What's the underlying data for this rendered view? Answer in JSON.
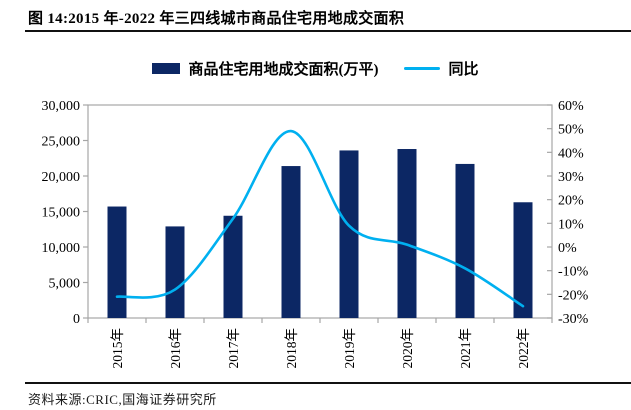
{
  "header": {
    "title": "图 14:2015 年-2022 年三四线城市商品住宅用地成交面积"
  },
  "legend": [
    {
      "label": "商品住宅用地成交面积(万平)",
      "swatch": "bar-swatch",
      "color": "#0C2764"
    },
    {
      "label": "同比",
      "swatch": "line-swatch",
      "color": "#00B0F0"
    }
  ],
  "footer": {
    "source": "资料来源:CRIC,国海证券研究所"
  },
  "chart_data": {
    "type": "bar",
    "subtype": "combo-bar-line-dual-axis",
    "title": "2015 年-2022 年三四线城市商品住宅用地成交面积",
    "categories": [
      "2015年",
      "2016年",
      "2017年",
      "2018年",
      "2019年",
      "2020年",
      "2021年",
      "2022年"
    ],
    "series": [
      {
        "name": "商品住宅用地成交面积(万平)",
        "type": "bar",
        "axis": "left",
        "color": "#0C2764",
        "values": [
          15700,
          12900,
          14400,
          21400,
          23600,
          23800,
          21700,
          16300
        ]
      },
      {
        "name": "同比",
        "type": "line",
        "axis": "right",
        "color": "#00B0F0",
        "values": [
          -21,
          -18,
          12,
          49,
          9,
          1,
          -9,
          -25
        ],
        "unit": "%"
      }
    ],
    "left_axis": {
      "min": 0,
      "max": 30000,
      "step": 5000,
      "tick_labels": [
        "0",
        "5,000",
        "10,000",
        "15,000",
        "20,000",
        "25,000",
        "30,000"
      ]
    },
    "right_axis": {
      "min": -30,
      "max": 60,
      "step": 10,
      "tick_labels": [
        "-30%",
        "-20%",
        "-10%",
        "0%",
        "10%",
        "20%",
        "30%",
        "40%",
        "50%",
        "60%"
      ]
    },
    "grid": "off",
    "legend_position": "top-center",
    "border_color": "#A6A6A6"
  }
}
